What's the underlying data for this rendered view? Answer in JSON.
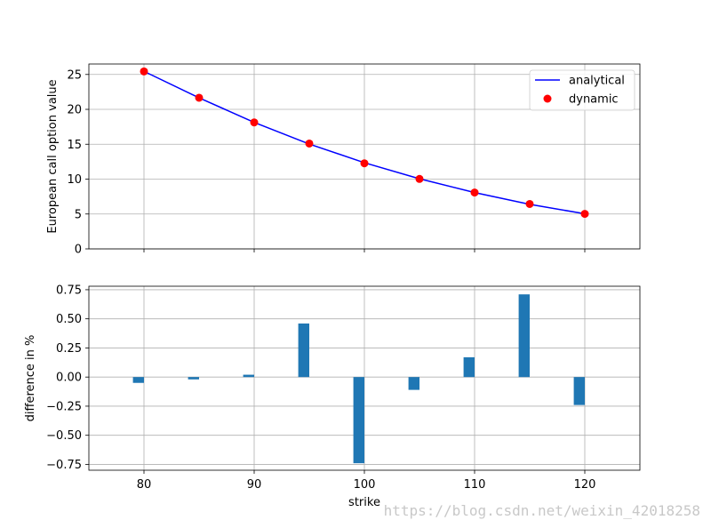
{
  "chart_data": [
    {
      "type": "line",
      "xlabel": "",
      "ylabel": "European call option value",
      "xlim": [
        75,
        125
      ],
      "ylim": [
        0,
        26.5
      ],
      "x": [
        80,
        85,
        90,
        95,
        100,
        105,
        110,
        115,
        120
      ],
      "xticks": [
        80,
        90,
        100,
        110,
        120
      ],
      "yticks": [
        0,
        5,
        10,
        15,
        20,
        25
      ],
      "grid": true,
      "legend_position": "top-right",
      "series": [
        {
          "name": "analytical",
          "style": "line",
          "color": "#0000ff",
          "values": [
            25.45,
            21.65,
            18.13,
            15.03,
            12.35,
            10.05,
            8.07,
            6.39,
            5.03
          ]
        },
        {
          "name": "dynamic",
          "style": "markers",
          "color": "#ff0000",
          "values": [
            25.44,
            21.66,
            18.13,
            15.1,
            12.27,
            10.03,
            8.08,
            6.44,
            5.02
          ]
        }
      ]
    },
    {
      "type": "bar",
      "xlabel": "strike",
      "ylabel": "difference in %",
      "xlim": [
        75,
        125
      ],
      "ylim": [
        -0.8,
        0.78
      ],
      "x": [
        80,
        85,
        90,
        95,
        100,
        105,
        110,
        115,
        120
      ],
      "xticks": [
        80,
        90,
        100,
        110,
        120
      ],
      "yticks": [
        0.75,
        0.5,
        0.25,
        0.0,
        -0.25,
        -0.5,
        -0.75
      ],
      "ytick_labels": [
        "0.75",
        "0.50",
        "0.25",
        "0.00",
        "−0.25",
        "−0.50",
        "−0.75"
      ],
      "grid": true,
      "bar_color": "#1f77b4",
      "values": [
        -0.05,
        -0.02,
        0.02,
        0.46,
        -0.74,
        -0.11,
        0.17,
        0.71,
        -0.24
      ]
    }
  ],
  "watermark": "https://blog.csdn.net/weixin_42018258"
}
